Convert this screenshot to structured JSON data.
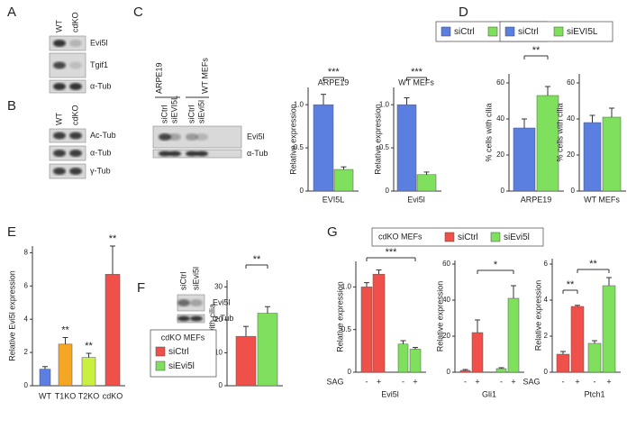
{
  "panel_labels": [
    "A",
    "B",
    "C",
    "D",
    "E",
    "F",
    "G"
  ],
  "blots": [
    {
      "lanes": [
        "WT",
        "cdKO"
      ],
      "rows": [
        "Evi5l",
        "Tgif1",
        "α-Tub"
      ]
    },
    {
      "lanes": [
        "WT",
        "cdKO"
      ],
      "rows": [
        "Ac-Tub",
        "α-Tub",
        "γ-Tub"
      ]
    },
    {
      "groups": [
        "ARPE19",
        "WT MEFs"
      ],
      "lanes": [
        "siCtrl",
        "siEVI5L",
        "siCtrl",
        "siEvi5l"
      ],
      "rows": [
        "Evi5l",
        "α-Tub"
      ]
    },
    {
      "lanes": [
        "siCtrl",
        "siEvi5l"
      ],
      "rows": [
        "Evi5l",
        "α-Tub"
      ]
    }
  ],
  "chart_data": [
    {
      "type": "bar",
      "title": "ARPE19",
      "x_label": "EVI5L",
      "y_label": "Relative expression",
      "legend": true,
      "ylim": [
        0,
        1.2
      ],
      "yticks": [
        0,
        0.5,
        {
          "value": 1,
          "label": "1.0"
        }
      ],
      "significance": [
        "***"
      ],
      "series": [
        {
          "name": "siCtrl",
          "color": "#5b7fe0",
          "values": [
            1.0
          ],
          "errors": [
            0.12
          ]
        },
        {
          "name": "siEVI5L",
          "color": "#7ee05c",
          "values": [
            0.25
          ],
          "errors": [
            0.03
          ]
        }
      ]
    },
    {
      "type": "bar",
      "title": "WT MEFs",
      "x_label": "Evi5l",
      "y_label": "Relative expression",
      "ylim": [
        0,
        1.2
      ],
      "yticks": [
        0,
        0.5,
        {
          "value": 1,
          "label": "1.0"
        }
      ],
      "significance": [
        "***"
      ],
      "series": [
        {
          "name": "siCtrl",
          "color": "#5b7fe0",
          "values": [
            1.0
          ],
          "errors": [
            0.08
          ]
        },
        {
          "name": "siEVI5L",
          "color": "#7ee05c",
          "values": [
            0.19
          ],
          "errors": [
            0.03
          ]
        }
      ]
    },
    {
      "type": "bar",
      "x_label": "ARPE19",
      "y_label": "% cells with cilia",
      "legend": true,
      "ylim": [
        0,
        65
      ],
      "yticks": [
        0,
        20,
        40,
        60
      ],
      "significance": [
        "**"
      ],
      "series": [
        {
          "name": "siCtrl",
          "color": "#5b7fe0",
          "values": [
            35
          ],
          "errors": [
            5
          ]
        },
        {
          "name": "siEVI5L",
          "color": "#7ee05c",
          "values": [
            53
          ],
          "errors": [
            5
          ]
        }
      ]
    },
    {
      "type": "bar",
      "x_label": "WT MEFs",
      "y_label": "% cells with cilia",
      "ylim": [
        0,
        65
      ],
      "yticks": [
        0,
        20,
        40,
        60
      ],
      "significance": [],
      "series": [
        {
          "name": "siCtrl",
          "color": "#5b7fe0",
          "values": [
            38
          ],
          "errors": [
            4
          ]
        },
        {
          "name": "siEVI5L",
          "color": "#7ee05c",
          "values": [
            41
          ],
          "errors": [
            5
          ]
        }
      ]
    },
    {
      "type": "bar",
      "y_label": "Relative Evi5l expression",
      "categories": [
        "WT",
        "T1KO",
        "T2KO",
        "cdKO"
      ],
      "ylim": [
        0,
        8.4
      ],
      "yticks": [
        0,
        2,
        4,
        6,
        8
      ],
      "significance": [],
      "series": [
        {
          "name": "Evi5l",
          "colors": [
            "#5b7fe0",
            "#f5a623",
            "#c9ef3f",
            "#f0504a"
          ],
          "values": [
            1.0,
            2.5,
            1.7,
            6.7
          ],
          "errors": [
            0.15,
            0.4,
            0.25,
            1.7
          ],
          "value_annotations": [
            null,
            "**",
            "**",
            "**"
          ]
        }
      ]
    },
    {
      "type": "bar",
      "y_label": "% cells with cilia",
      "legend": true,
      "legend_title": "cdKO MEFs",
      "ylim": [
        0,
        32
      ],
      "yticks": [
        0,
        10,
        20,
        30
      ],
      "significance": [
        "**"
      ],
      "series": [
        {
          "name": "siCtrl",
          "color": "#f0504a",
          "values": [
            15
          ],
          "errors": [
            3
          ]
        },
        {
          "name": "siEvi5l",
          "color": "#7ee05c",
          "values": [
            22
          ],
          "errors": [
            2
          ]
        }
      ]
    },
    {
      "type": "bar",
      "x_label": "Evi5l",
      "y_label": "Relative expression",
      "row_label": "SAG",
      "legend": true,
      "legend_title": "cdKO MEFs",
      "categories": [
        "-",
        "+"
      ],
      "ylim": [
        0,
        1.3
      ],
      "yticks": [
        0,
        0.5,
        {
          "value": 1,
          "label": "1.0"
        }
      ],
      "significance": [
        "***"
      ],
      "series": [
        {
          "name": "siCtrl",
          "color": "#f0504a",
          "values": [
            1.0,
            1.15
          ],
          "errors": [
            0.05,
            0.05
          ]
        },
        {
          "name": "siEvi5l",
          "color": "#7ee05c",
          "values": [
            0.33,
            0.27
          ],
          "errors": [
            0.04,
            0.02
          ]
        }
      ]
    },
    {
      "type": "bar",
      "x_label": "Gli1",
      "y_label": "Relative expression",
      "categories": [
        "-",
        "+"
      ],
      "ylim": [
        0,
        62
      ],
      "yticks": [
        0,
        20,
        40,
        60
      ],
      "significance": [
        "*"
      ],
      "series": [
        {
          "name": "siCtrl",
          "color": "#f0504a",
          "values": [
            1,
            22
          ],
          "errors": [
            0.5,
            7
          ]
        },
        {
          "name": "siEvi5l",
          "color": "#7ee05c",
          "values": [
            2,
            41
          ],
          "errors": [
            0.5,
            7
          ]
        }
      ]
    },
    {
      "type": "bar",
      "x_label": "Ptch1",
      "y_label": "Relative expression",
      "row_label": "SAG",
      "categories": [
        "-",
        "+"
      ],
      "ylim": [
        0,
        6.3
      ],
      "yticks": [
        0,
        2,
        4,
        6
      ],
      "significance": [
        "**",
        "**"
      ],
      "series": [
        {
          "name": "siCtrl",
          "color": "#f0504a",
          "values": [
            1.0,
            3.65
          ],
          "errors": [
            0.15,
            0.06
          ]
        },
        {
          "name": "siEvi5l",
          "color": "#7ee05c",
          "values": [
            1.6,
            4.8
          ],
          "errors": [
            0.15,
            0.45
          ]
        }
      ]
    }
  ]
}
